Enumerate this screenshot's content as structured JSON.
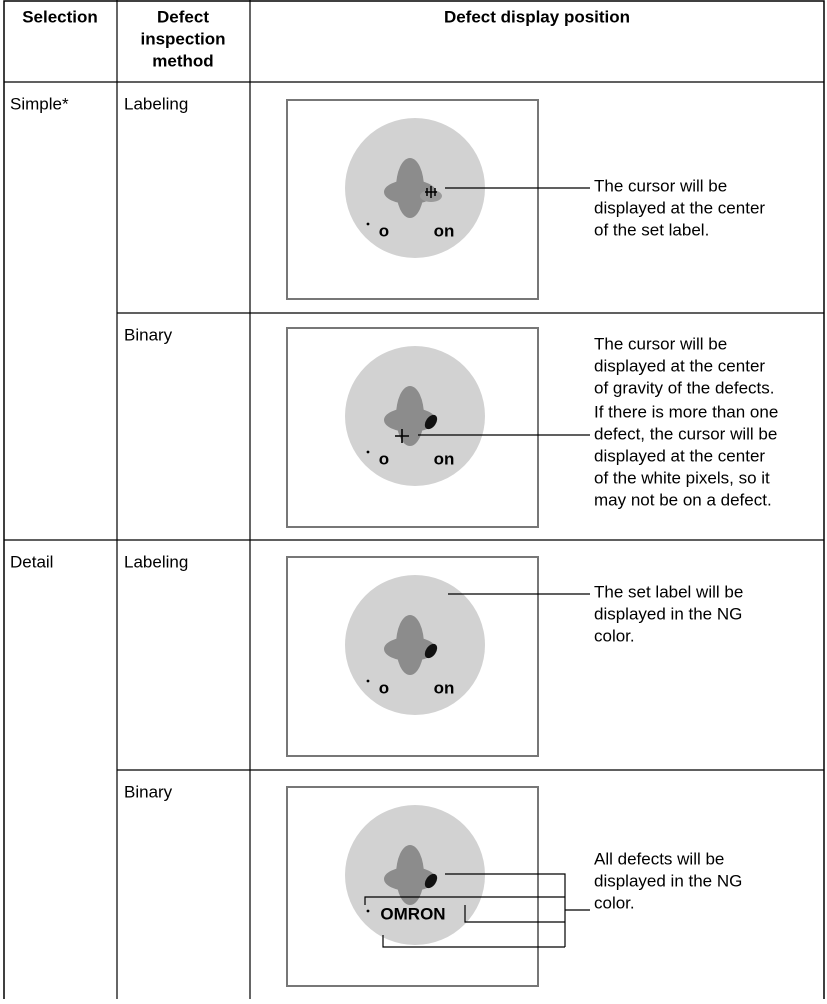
{
  "header": {
    "selection": "Selection",
    "method": [
      "Defect",
      "inspection",
      "method"
    ],
    "position": "Defect display position"
  },
  "rows": [
    {
      "selection": "Simple*",
      "method": "Labeling",
      "logo": [
        "o",
        "on"
      ],
      "description": [
        [
          "The cursor will be",
          "displayed at the center",
          "of the set label."
        ]
      ]
    },
    {
      "method": "Binary",
      "logo": [
        "o",
        "on"
      ],
      "description": [
        [
          "The cursor will be",
          "displayed at the center",
          "of gravity of the defects."
        ],
        [
          "If there is more than one",
          "defect, the cursor will be",
          "displayed at the center",
          "of the white pixels, so it",
          "may not be on a defect."
        ]
      ]
    },
    {
      "selection": "Detail",
      "method": "Labeling",
      "logo": [
        "o",
        "on"
      ],
      "description": [
        [
          "The set label will be",
          "displayed in the NG",
          "color."
        ]
      ]
    },
    {
      "method": "Binary",
      "logo": [
        "OMRON"
      ],
      "description": [
        [
          "All defects will be",
          "displayed in the NG",
          "color."
        ]
      ]
    }
  ]
}
